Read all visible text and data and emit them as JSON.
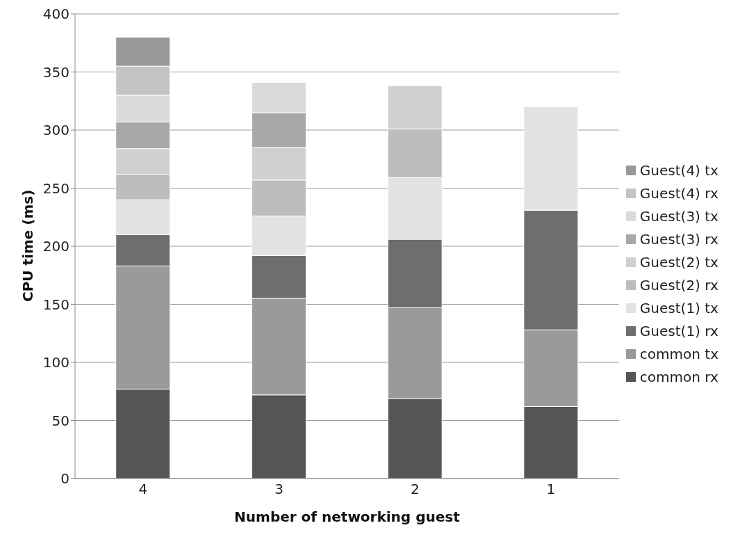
{
  "chart_data": {
    "type": "bar",
    "stacked": true,
    "xlabel": "Number of networking guest",
    "ylabel": "CPU time (ms)",
    "categories": [
      "4",
      "3",
      "2",
      "1"
    ],
    "series": [
      {
        "name": "common rx",
        "color": "#555555",
        "values": [
          77,
          72,
          69,
          62
        ]
      },
      {
        "name": "common tx",
        "color": "#9a9a9a",
        "values": [
          106,
          83,
          78,
          66
        ]
      },
      {
        "name": "Guest(1) rx",
        "color": "#6e6e6e",
        "values": [
          27,
          37,
          59,
          103
        ]
      },
      {
        "name": "Guest(1) tx",
        "color": "#e2e2e2",
        "values": [
          30,
          34,
          53,
          89
        ]
      },
      {
        "name": "Guest(2) rx",
        "color": "#bdbdbd",
        "values": [
          22,
          31,
          42,
          null
        ]
      },
      {
        "name": "Guest(2) tx",
        "color": "#d0d0d0",
        "values": [
          22,
          28,
          37,
          null
        ]
      },
      {
        "name": "Guest(3) rx",
        "color": "#a8a8a8",
        "values": [
          23,
          30,
          null,
          null
        ]
      },
      {
        "name": "Guest(3) tx",
        "color": "#dadada",
        "values": [
          23,
          26,
          null,
          null
        ]
      },
      {
        "name": "Guest(4) rx",
        "color": "#c4c4c4",
        "values": [
          25,
          null,
          null,
          null
        ]
      },
      {
        "name": "Guest(4) tx",
        "color": "#999999",
        "values": [
          25,
          null,
          null,
          null
        ]
      }
    ],
    "ylim": [
      0,
      400
    ],
    "yticks": [
      0,
      50,
      100,
      150,
      200,
      250,
      300,
      350,
      400
    ],
    "grid": "y",
    "legend": "right"
  }
}
